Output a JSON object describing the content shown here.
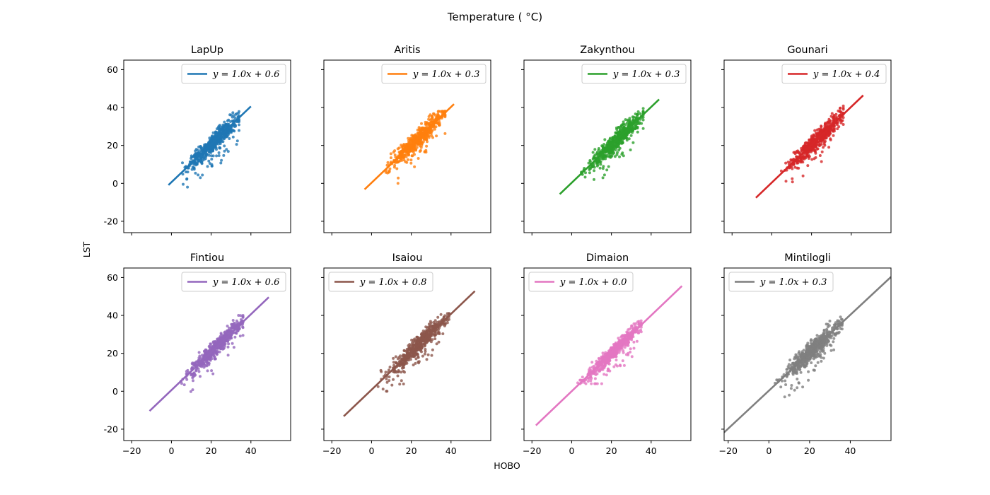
{
  "figure": {
    "title": "Temperature ( °C)",
    "xlabel": "HOBO",
    "ylabel": "LST"
  },
  "chart_data": [
    {
      "type": "scatter",
      "title": "LapUp",
      "color": "#1f77b4",
      "legend": "y = 1.0x + 0.6",
      "slope": 1.0,
      "intercept": 0.6,
      "fit_x": [
        -1.5,
        40
      ],
      "cloud": {
        "x": [
          4,
          34
        ],
        "y": [
          -2,
          42
        ],
        "noise": 3.2
      },
      "seed": 11,
      "xlim": [
        -24,
        60
      ],
      "ylim": [
        -26,
        65
      ],
      "xticks": [
        -20,
        0,
        20,
        40
      ],
      "yticks": [
        -20,
        0,
        20,
        40,
        60
      ],
      "grid": false,
      "legend_position": "top-right"
    },
    {
      "type": "scatter",
      "title": "Aritis",
      "color": "#ff7f0e",
      "legend": "y = 1.0x + 0.3",
      "slope": 1.0,
      "intercept": 0.3,
      "fit_x": [
        -3.5,
        41.5
      ],
      "cloud": {
        "x": [
          4,
          37
        ],
        "y": [
          -2,
          38
        ],
        "noise": 3.2
      },
      "seed": 23,
      "xlim": [
        -24,
        60
      ],
      "ylim": [
        -26,
        65
      ],
      "xticks": [
        -20,
        0,
        20,
        40
      ],
      "yticks": [
        -20,
        0,
        20,
        40,
        60
      ],
      "grid": false,
      "legend_position": "top-right"
    },
    {
      "type": "scatter",
      "title": "Zakynthou",
      "color": "#2ca02c",
      "legend": "y = 1.0x + 0.3",
      "slope": 1.0,
      "intercept": 0.3,
      "fit_x": [
        -6,
        44
      ],
      "cloud": {
        "x": [
          4,
          36
        ],
        "y": [
          2,
          42
        ],
        "noise": 3.6
      },
      "seed": 37,
      "xlim": [
        -24,
        60
      ],
      "ylim": [
        -26,
        65
      ],
      "xticks": [
        -20,
        0,
        20,
        40
      ],
      "yticks": [
        -20,
        0,
        20,
        40,
        60
      ],
      "grid": false,
      "legend_position": "top-right"
    },
    {
      "type": "scatter",
      "title": "Gounari",
      "color": "#d62728",
      "legend": "y = 1.0x + 0.4",
      "slope": 1.0,
      "intercept": 0.4,
      "fit_x": [
        -8,
        46
      ],
      "cloud": {
        "x": [
          4,
          36
        ],
        "y": [
          -3,
          42
        ],
        "noise": 3.4
      },
      "seed": 41,
      "xlim": [
        -24,
        60
      ],
      "ylim": [
        -26,
        65
      ],
      "xticks": [
        -20,
        0,
        20,
        40
      ],
      "yticks": [
        -20,
        0,
        20,
        40,
        60
      ],
      "grid": false,
      "legend_position": "top-right"
    },
    {
      "type": "scatter",
      "title": "Fintiou",
      "color": "#9467bd",
      "legend": "y = 1.0x + 0.6",
      "slope": 1.0,
      "intercept": 0.6,
      "fit_x": [
        -11,
        49
      ],
      "cloud": {
        "x": [
          4,
          36
        ],
        "y": [
          -2,
          40
        ],
        "noise": 3.2
      },
      "seed": 53,
      "xlim": [
        -24,
        60
      ],
      "ylim": [
        -26,
        65
      ],
      "xticks": [
        -20,
        0,
        20,
        40
      ],
      "yticks": [
        -20,
        0,
        20,
        40,
        60
      ],
      "grid": false,
      "legend_position": "top-right"
    },
    {
      "type": "scatter",
      "title": "Isaiou",
      "color": "#8c564b",
      "legend": "y = 1.0x + 0.8",
      "slope": 1.0,
      "intercept": 0.8,
      "fit_x": [
        -14,
        52
      ],
      "cloud": {
        "x": [
          3,
          39
        ],
        "y": [
          0,
          41
        ],
        "noise": 3.4
      },
      "seed": 67,
      "xlim": [
        -24,
        60
      ],
      "ylim": [
        -26,
        65
      ],
      "xticks": [
        -20,
        0,
        20,
        40
      ],
      "yticks": [
        -20,
        0,
        20,
        40,
        60
      ],
      "grid": false,
      "legend_position": "top-left"
    },
    {
      "type": "scatter",
      "title": "Dimaion",
      "color": "#e377c2",
      "legend": "y = 1.0x + 0.0",
      "slope": 1.0,
      "intercept": 0.0,
      "fit_x": [
        -18,
        55.5
      ],
      "cloud": {
        "x": [
          3,
          35
        ],
        "y": [
          4,
          39
        ],
        "noise": 2.6
      },
      "seed": 71,
      "xlim": [
        -24,
        60
      ],
      "ylim": [
        -26,
        65
      ],
      "xticks": [
        -20,
        0,
        20,
        40
      ],
      "yticks": [
        -20,
        0,
        20,
        40,
        60
      ],
      "grid": false,
      "legend_position": "top-left"
    },
    {
      "type": "scatter",
      "title": "Mintilogli",
      "color": "#7f7f7f",
      "legend": "y = 1.0x + 0.3",
      "slope": 1.0,
      "intercept": 0.3,
      "fit_x": [
        -22,
        60
      ],
      "cloud": {
        "x": [
          1,
          36
        ],
        "y": [
          -3,
          41
        ],
        "noise": 3.8
      },
      "seed": 83,
      "xlim": [
        -22,
        60
      ],
      "ylim": [
        -26,
        65
      ],
      "xticks": [
        -20,
        0,
        20,
        40
      ],
      "yticks": [
        -20,
        0,
        20,
        40,
        60
      ],
      "grid": false,
      "legend_position": "top-left"
    }
  ]
}
